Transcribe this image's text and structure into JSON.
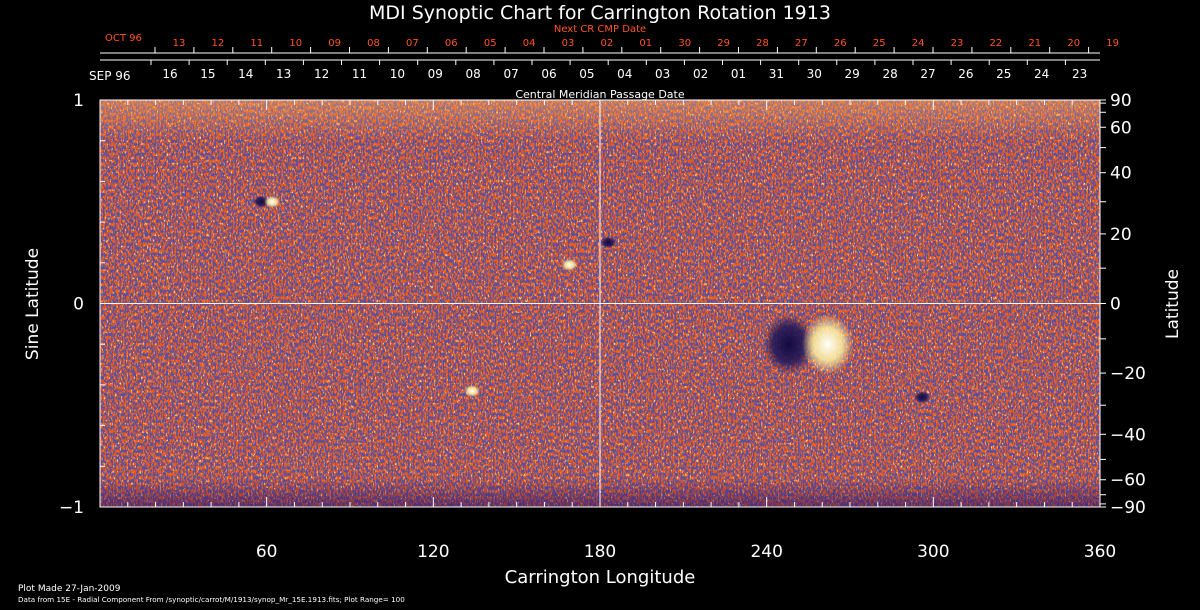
{
  "chart_data": {
    "type": "heatmap",
    "title": "MDI Synoptic Chart for Carrington Rotation 1913",
    "top_axis": {
      "label": "Next CR CMP Date",
      "month_label": "OCT 96",
      "tick_labels": [
        "13",
        "12",
        "11",
        "10",
        "09",
        "08",
        "07",
        "06",
        "05",
        "04",
        "03",
        "02",
        "01",
        "30",
        "29",
        "28",
        "27",
        "26",
        "25",
        "24",
        "23",
        "22",
        "21",
        "20",
        "19"
      ]
    },
    "cmp_axis": {
      "label": "Central Meridian Passage Date",
      "month_label": "SEP 96",
      "tick_labels": [
        "16",
        "15",
        "14",
        "13",
        "12",
        "11",
        "10",
        "09",
        "08",
        "07",
        "06",
        "05",
        "04",
        "03",
        "02",
        "01",
        "31",
        "30",
        "29",
        "28",
        "27",
        "26",
        "25",
        "24",
        "23"
      ]
    },
    "x_axis": {
      "label": "Carrington Longitude",
      "range": [
        0,
        360
      ],
      "tick_values": [
        60,
        120,
        180,
        240,
        300,
        360
      ],
      "tick_labels": [
        "60",
        "120",
        "180",
        "240",
        "300",
        "360"
      ]
    },
    "y_left": {
      "label": "Sine Latitude",
      "range": [
        -1,
        1
      ],
      "tick_values": [
        1,
        0,
        -1
      ],
      "tick_labels": [
        "1",
        "0",
        "−1"
      ]
    },
    "y_right": {
      "label": "Latitude",
      "tick_values": [
        90,
        60,
        40,
        20,
        0,
        -20,
        -40,
        -60,
        -90
      ],
      "tick_labels": [
        "90",
        "60",
        "40",
        "20",
        "0",
        "−20",
        "−40",
        "−60",
        "−90"
      ]
    },
    "crosshair": {
      "longitude": 180,
      "sine_latitude": 0
    },
    "features": [
      {
        "polarity": "negative",
        "longitude": 248,
        "sine_latitude": -0.2
      },
      {
        "polarity": "positive",
        "longitude": 262,
        "sine_latitude": -0.2
      },
      {
        "polarity": "negative",
        "longitude": 58,
        "sine_latitude": 0.5
      },
      {
        "polarity": "positive",
        "longitude": 62,
        "sine_latitude": 0.5
      },
      {
        "polarity": "negative",
        "longitude": 183,
        "sine_latitude": 0.3
      },
      {
        "polarity": "positive",
        "longitude": 169,
        "sine_latitude": 0.19
      },
      {
        "polarity": "negative",
        "longitude": 296,
        "sine_latitude": -0.46
      },
      {
        "polarity": "positive",
        "longitude": 134,
        "sine_latitude": -0.43
      }
    ],
    "colors": {
      "background": "#000000",
      "field": "#f05a14",
      "positive": "#fff6b0",
      "negative": "#1a1450",
      "title": "#ffffff",
      "top_axis": "#ff5522"
    }
  },
  "footer": {
    "plot_made": "Plot Made 27-Jan-2009",
    "source": "Data from 15E - Radial Component From /synoptic/carrot/M/1913/synop_Mr_15E.1913.fits; Plot Range=  100"
  }
}
